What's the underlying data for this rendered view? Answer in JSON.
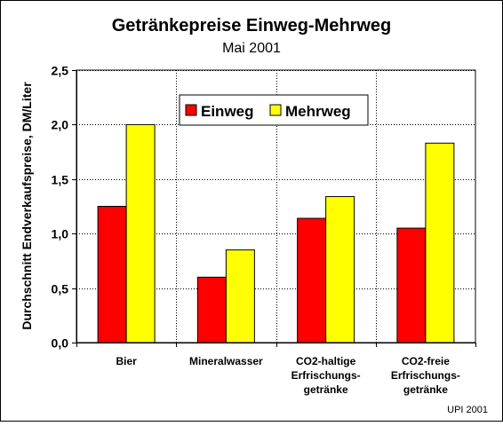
{
  "chart_data": {
    "type": "bar",
    "title": "Getränkepreise Einweg-Mehrweg",
    "subtitle": "Mai 2001",
    "ylabel": "Durchschnitt Endverkaufspreise, DM/Liter",
    "xlabel": "",
    "ylim": [
      0,
      2.5
    ],
    "y_ticks": [
      "0,0",
      "0,5",
      "1,0",
      "1,5",
      "2,0",
      "2,5"
    ],
    "y_tick_values": [
      0,
      0.5,
      1.0,
      1.5,
      2.0,
      2.5
    ],
    "grid": true,
    "legend_position": "top-center",
    "categories": [
      [
        "Bier"
      ],
      [
        "Mineralwasser"
      ],
      [
        "CO2-haltige",
        "Erfrischungs-",
        "getränke"
      ],
      [
        "CO2-freie",
        "Erfrischungs-",
        "getränke"
      ]
    ],
    "series": [
      {
        "name": "Einweg",
        "color": "#ff0000",
        "values": [
          1.25,
          0.6,
          1.14,
          1.05
        ]
      },
      {
        "name": "Mehrweg",
        "color": "#ffff00",
        "values": [
          2.0,
          0.85,
          1.34,
          1.83
        ]
      }
    ],
    "source_note": "UPI 2001"
  }
}
